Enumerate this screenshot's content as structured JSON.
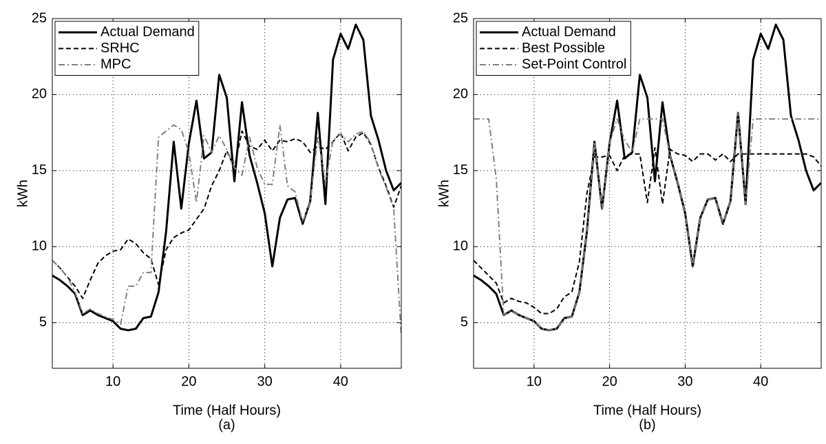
{
  "chart_data": [
    {
      "type": "line",
      "xlabel": "Time (Half Hours)",
      "ylabel": "kWh",
      "caption": "(a)",
      "x": [
        2,
        3,
        4,
        5,
        6,
        7,
        8,
        9,
        10,
        11,
        12,
        13,
        14,
        15,
        16,
        17,
        18,
        19,
        20,
        21,
        22,
        23,
        24,
        25,
        26,
        27,
        28,
        29,
        30,
        31,
        32,
        33,
        34,
        35,
        36,
        37,
        38,
        39,
        40,
        41,
        42,
        43,
        44,
        45,
        46,
        47,
        48
      ],
      "xlim": [
        2,
        48
      ],
      "xticks": [
        10,
        20,
        30,
        40
      ],
      "ylim": [
        2,
        25
      ],
      "yticks": [
        5,
        10,
        15,
        20,
        25
      ],
      "grid": true,
      "legend": "upper left",
      "series": [
        {
          "name": "Actual Demand",
          "color": "#000000",
          "style": "solid",
          "values": [
            8.1,
            7.8,
            7.4,
            6.9,
            5.5,
            5.8,
            5.5,
            5.3,
            5.1,
            4.6,
            4.5,
            4.6,
            5.3,
            5.4,
            7.0,
            11.0,
            16.9,
            12.5,
            16.8,
            19.6,
            15.8,
            16.2,
            21.3,
            19.8,
            14.3,
            19.5,
            16.0,
            14.2,
            12.2,
            8.7,
            11.9,
            13.1,
            13.2,
            11.5,
            13.0,
            18.8,
            12.8,
            22.3,
            24.0,
            23.0,
            24.6,
            23.6,
            18.6,
            17.0,
            15.0,
            13.7,
            14.2
          ]
        },
        {
          "name": "SRHC",
          "color": "#000000",
          "style": "dashed",
          "values": [
            9.1,
            8.6,
            8.0,
            7.4,
            6.6,
            7.8,
            8.9,
            9.4,
            9.7,
            9.8,
            10.5,
            10.2,
            9.6,
            9.2,
            7.5,
            9.8,
            10.6,
            10.9,
            11.1,
            11.8,
            12.5,
            14.0,
            15.0,
            16.3,
            15.2,
            17.6,
            16.6,
            16.4,
            17.0,
            16.3,
            17.0,
            16.9,
            17.1,
            16.9,
            16.2,
            16.6,
            16.4,
            16.9,
            17.5,
            16.3,
            17.2,
            17.5,
            16.7,
            15.2,
            14.0,
            12.6,
            14.0
          ]
        },
        {
          "name": "MPC",
          "color": "#808080",
          "style": "dashdot",
          "values": [
            9.1,
            8.6,
            8.0,
            7.0,
            5.6,
            5.9,
            5.6,
            5.4,
            5.2,
            4.9,
            7.4,
            7.4,
            8.3,
            8.3,
            17.2,
            17.6,
            18.0,
            17.7,
            16.2,
            12.9,
            17.3,
            16.2,
            17.3,
            16.4,
            15.2,
            14.7,
            17.2,
            15.2,
            14.1,
            14.1,
            18.0,
            14.0,
            13.6,
            11.6,
            13.0,
            17.3,
            14.2,
            17.0,
            17.4,
            16.9,
            17.4,
            17.6,
            16.8,
            15.1,
            13.9,
            12.5,
            4.1
          ]
        }
      ]
    },
    {
      "type": "line",
      "xlabel": "Time (Half Hours)",
      "ylabel": "kWh",
      "caption": "(b)",
      "x": [
        2,
        3,
        4,
        5,
        6,
        7,
        8,
        9,
        10,
        11,
        12,
        13,
        14,
        15,
        16,
        17,
        18,
        19,
        20,
        21,
        22,
        23,
        24,
        25,
        26,
        27,
        28,
        29,
        30,
        31,
        32,
        33,
        34,
        35,
        36,
        37,
        38,
        39,
        40,
        41,
        42,
        43,
        44,
        45,
        46,
        47,
        48
      ],
      "xlim": [
        2,
        48
      ],
      "xticks": [
        10,
        20,
        30,
        40
      ],
      "ylim": [
        2,
        25
      ],
      "yticks": [
        5,
        10,
        15,
        20,
        25
      ],
      "grid": true,
      "legend": "upper left",
      "series": [
        {
          "name": "Actual Demand",
          "color": "#000000",
          "style": "solid",
          "values": [
            8.1,
            7.8,
            7.4,
            6.9,
            5.5,
            5.8,
            5.5,
            5.3,
            5.1,
            4.6,
            4.5,
            4.6,
            5.3,
            5.4,
            7.0,
            11.0,
            16.9,
            12.5,
            16.8,
            19.6,
            15.8,
            16.2,
            21.3,
            19.8,
            14.3,
            19.5,
            16.0,
            14.2,
            12.2,
            8.7,
            11.9,
            13.1,
            13.2,
            11.5,
            13.0,
            18.8,
            12.8,
            22.3,
            24.0,
            23.0,
            24.6,
            23.6,
            18.6,
            17.0,
            15.0,
            13.7,
            14.2
          ]
        },
        {
          "name": "Best Possible",
          "color": "#000000",
          "style": "dashed",
          "values": [
            9.1,
            8.6,
            8.1,
            7.6,
            6.3,
            6.6,
            6.4,
            6.3,
            6.0,
            5.6,
            5.6,
            5.9,
            6.7,
            7.0,
            9.0,
            13.5,
            15.9,
            15.9,
            16.0,
            15.0,
            16.0,
            16.1,
            16.1,
            12.9,
            16.5,
            12.8,
            16.4,
            16.1,
            16.0,
            15.6,
            16.1,
            16.1,
            15.7,
            16.1,
            15.6,
            16.1,
            16.1,
            16.1,
            16.1,
            16.1,
            16.1,
            16.1,
            16.1,
            16.1,
            16.1,
            15.9,
            15.3
          ]
        },
        {
          "name": "Set-Point Control",
          "color": "#808080",
          "style": "dashdot",
          "values": [
            18.4,
            18.4,
            18.4,
            14.5,
            5.5,
            5.8,
            5.5,
            5.3,
            5.1,
            4.6,
            4.5,
            4.6,
            5.3,
            5.4,
            7.0,
            11.0,
            16.9,
            12.5,
            16.8,
            18.4,
            17.0,
            16.2,
            18.4,
            18.4,
            18.4,
            18.4,
            16.0,
            14.2,
            12.2,
            8.7,
            11.9,
            13.1,
            13.2,
            11.5,
            13.0,
            18.8,
            12.8,
            18.4,
            18.4,
            18.4,
            18.4,
            18.4,
            18.4,
            18.4,
            18.4,
            18.4,
            18.4
          ]
        }
      ]
    }
  ]
}
